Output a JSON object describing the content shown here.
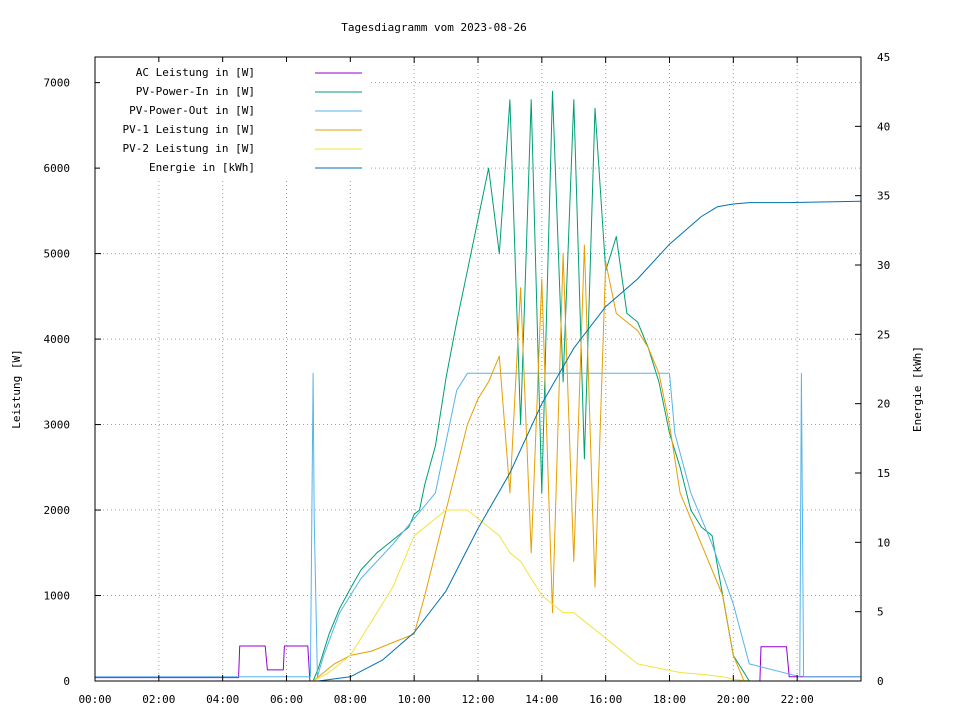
{
  "chart_data": {
    "type": "line",
    "title": "Tagesdiagramm vom 2023-08-26",
    "ylabel": "Leistung [W]",
    "y2label": "Energie [kWh]",
    "grid": true,
    "legend_placement": "top-left",
    "xlim": [
      0,
      1440
    ],
    "ylim": [
      0,
      7300
    ],
    "y2lim": [
      0,
      45
    ],
    "x_ticks": [
      {
        "value": 0,
        "label": "00:00"
      },
      {
        "value": 120,
        "label": "02:00"
      },
      {
        "value": 240,
        "label": "04:00"
      },
      {
        "value": 360,
        "label": "06:00"
      },
      {
        "value": 480,
        "label": "08:00"
      },
      {
        "value": 600,
        "label": "10:00"
      },
      {
        "value": 720,
        "label": "12:00"
      },
      {
        "value": 840,
        "label": "14:00"
      },
      {
        "value": 960,
        "label": "16:00"
      },
      {
        "value": 1080,
        "label": "18:00"
      },
      {
        "value": 1200,
        "label": "20:00"
      },
      {
        "value": 1320,
        "label": "22:00"
      }
    ],
    "y_ticks": [
      0,
      1000,
      2000,
      3000,
      4000,
      5000,
      6000,
      7000
    ],
    "y2_ticks": [
      0,
      5,
      10,
      15,
      20,
      25,
      30,
      35,
      40,
      45
    ],
    "series": [
      {
        "name": "AC Leistung in [W]",
        "axis": "y",
        "color": "#9400d3",
        "x": [
          0,
          270,
          272,
          320,
          324,
          354,
          356,
          400,
          404,
          412,
          1250,
          1252,
          1300,
          1305,
          1440
        ],
        "y": [
          40,
          40,
          410,
          410,
          130,
          130,
          410,
          410,
          0,
          0,
          0,
          400,
          400,
          50,
          50
        ]
      },
      {
        "name": "PV-Power-In in [W]",
        "axis": "y",
        "color": "#009e73",
        "x": [
          0,
          410,
          420,
          440,
          460,
          480,
          500,
          530,
          560,
          590,
          600,
          610,
          620,
          640,
          660,
          680,
          700,
          720,
          740,
          760,
          780,
          800,
          820,
          840,
          860,
          880,
          900,
          920,
          940,
          960,
          980,
          1000,
          1020,
          1040,
          1060,
          1080,
          1100,
          1120,
          1140,
          1160,
          1180,
          1200,
          1230,
          1440
        ],
        "y": [
          0,
          0,
          150,
          550,
          850,
          1080,
          1300,
          1500,
          1650,
          1800,
          1950,
          2000,
          2300,
          2750,
          3550,
          4200,
          4800,
          5400,
          6000,
          5000,
          6800,
          3000,
          6800,
          2200,
          6900,
          3500,
          6800,
          2600,
          6700,
          4800,
          5200,
          4300,
          4200,
          3900,
          3500,
          2900,
          2500,
          2000,
          1800,
          1700,
          1000,
          300,
          0,
          0
        ]
      },
      {
        "name": "PV-Power-Out in [W]",
        "axis": "y",
        "color": "#56b4e9",
        "x": [
          0,
          405,
          410,
          412,
          418,
          430,
          460,
          500,
          560,
          600,
          640,
          680,
          700,
          1080,
          1090,
          1120,
          1160,
          1200,
          1230,
          1325,
          1328,
          1332,
          1440
        ],
        "y": [
          50,
          50,
          3600,
          1900,
          50,
          300,
          800,
          1200,
          1600,
          1900,
          2200,
          3400,
          3600,
          3600,
          2900,
          2200,
          1600,
          900,
          200,
          50,
          3600,
          50,
          50
        ]
      },
      {
        "name": "PV-1 Leistung in [W]",
        "axis": "y",
        "color": "#e69f00",
        "x": [
          0,
          410,
          450,
          480,
          520,
          560,
          600,
          620,
          660,
          700,
          720,
          740,
          760,
          780,
          800,
          820,
          840,
          860,
          880,
          900,
          920,
          940,
          960,
          980,
          1000,
          1020,
          1040,
          1060,
          1080,
          1100,
          1140,
          1180,
          1200,
          1220,
          1440
        ],
        "y": [
          0,
          0,
          200,
          300,
          350,
          450,
          550,
          1000,
          2000,
          3000,
          3300,
          3500,
          3800,
          2200,
          4600,
          1500,
          4700,
          800,
          5000,
          1400,
          5100,
          1100,
          4900,
          4300,
          4200,
          4100,
          3900,
          3600,
          3000,
          2200,
          1600,
          1000,
          300,
          0,
          0
        ]
      },
      {
        "name": "PV-2 Leistung in [W]",
        "axis": "y",
        "color": "#f0e442",
        "x": [
          0,
          410,
          440,
          480,
          520,
          560,
          600,
          640,
          660,
          700,
          720,
          740,
          760,
          780,
          800,
          820,
          840,
          860,
          880,
          900,
          920,
          940,
          960,
          980,
          1000,
          1020,
          1060,
          1100,
          1140,
          1180,
          1200,
          1230,
          1440
        ],
        "y": [
          0,
          0,
          100,
          300,
          700,
          1100,
          1700,
          1900,
          2000,
          2000,
          1900,
          1800,
          1700,
          1500,
          1400,
          1200,
          1000,
          900,
          800,
          800,
          700,
          600,
          500,
          400,
          300,
          200,
          150,
          100,
          80,
          50,
          20,
          0,
          0
        ]
      },
      {
        "name": "Energie in [kWh]",
        "axis": "y2",
        "color": "#0072b2",
        "x": [
          0,
          420,
          480,
          540,
          600,
          660,
          720,
          780,
          840,
          900,
          960,
          1020,
          1080,
          1140,
          1170,
          1200,
          1230,
          1300,
          1440
        ],
        "y": [
          0,
          0,
          0.3,
          1.5,
          3.5,
          6.5,
          11,
          15,
          20,
          24,
          27,
          29,
          31.5,
          33.5,
          34.2,
          34.4,
          34.5,
          34.5,
          34.6
        ]
      }
    ]
  }
}
